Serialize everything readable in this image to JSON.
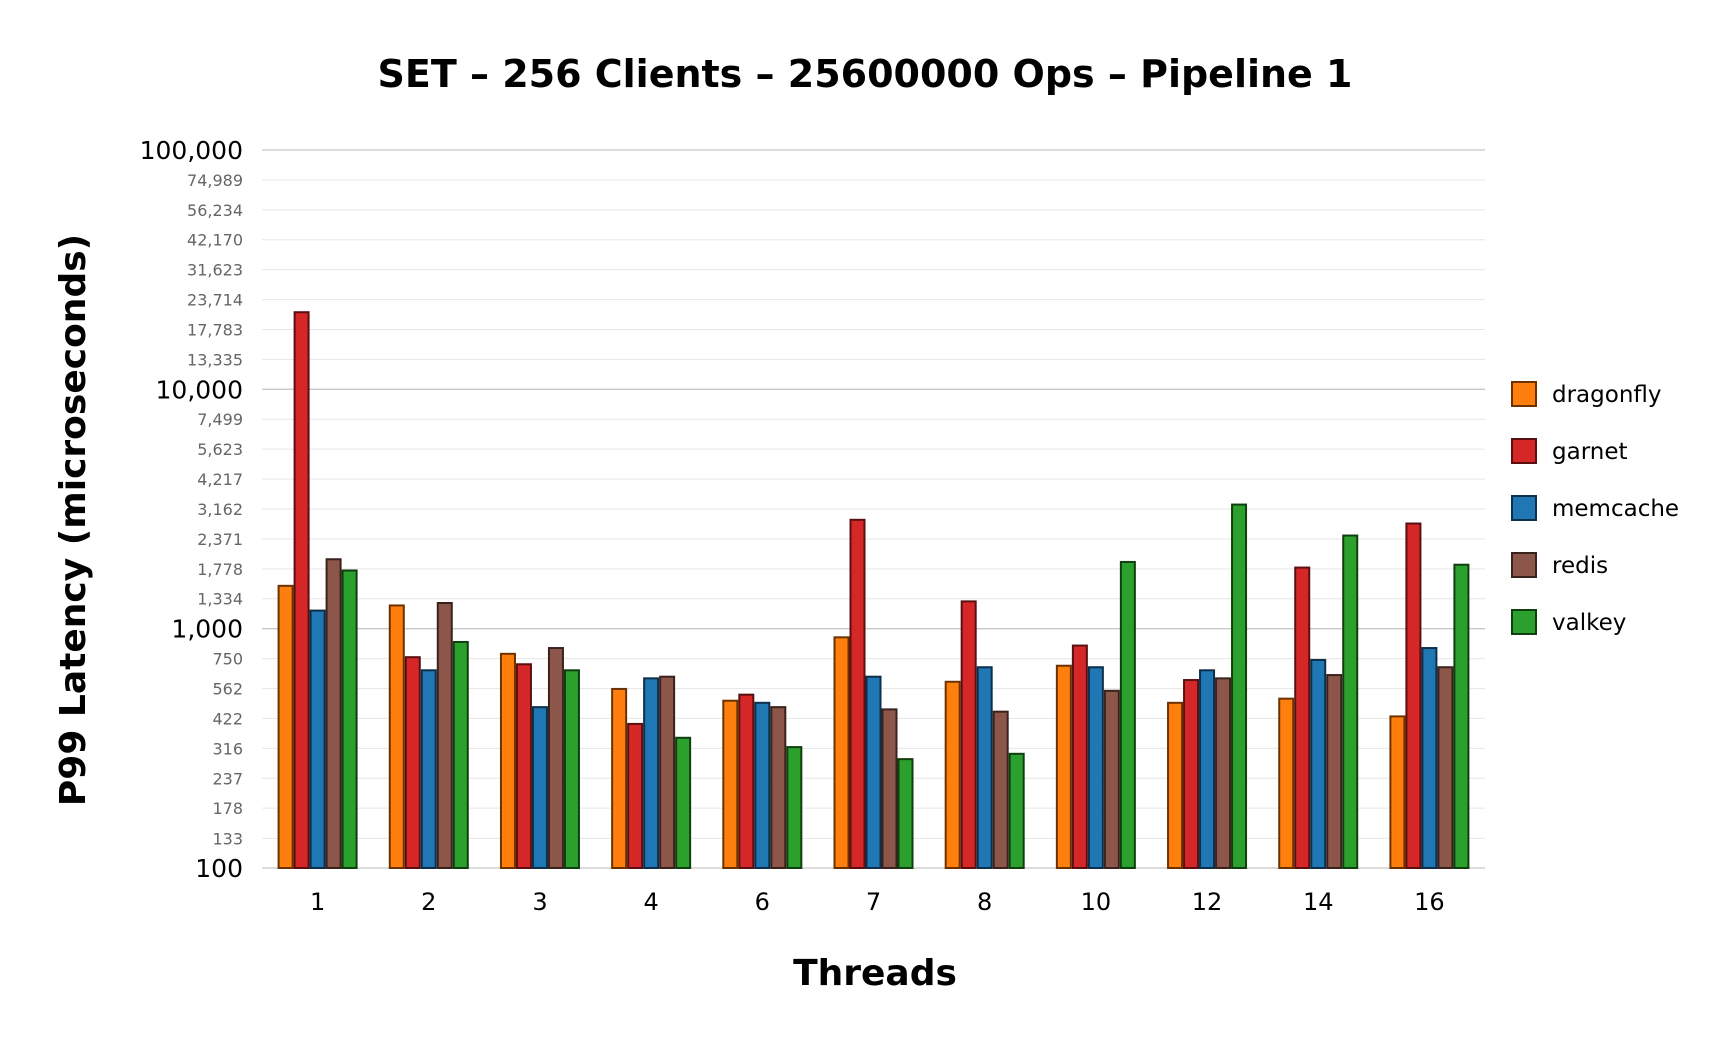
{
  "chart_data": {
    "type": "bar",
    "title": "SET – 256 Clients – 25600000 Ops – Pipeline 1",
    "xlabel": "Threads",
    "ylabel": "P99 Latency (microseconds)",
    "y_scale": "log",
    "ylim": [
      100,
      100000
    ],
    "grid": true,
    "legend_position": "right",
    "y_ticks_major": [
      "100",
      "1,000",
      "10,000",
      "100,000"
    ],
    "y_ticks_minor": [
      {
        "value": 133,
        "label": "133"
      },
      {
        "value": 178,
        "label": "178"
      },
      {
        "value": 237,
        "label": "237"
      },
      {
        "value": 316,
        "label": "316"
      },
      {
        "value": 422,
        "label": "422"
      },
      {
        "value": 562,
        "label": "562"
      },
      {
        "value": 750,
        "label": "750"
      },
      {
        "value": 1334,
        "label": "1,334"
      },
      {
        "value": 1778,
        "label": "1,778"
      },
      {
        "value": 2371,
        "label": "2,371"
      },
      {
        "value": 3162,
        "label": "3,162"
      },
      {
        "value": 4217,
        "label": "4,217"
      },
      {
        "value": 5623,
        "label": "5,623"
      },
      {
        "value": 7499,
        "label": "7,499"
      },
      {
        "value": 13335,
        "label": "13,335"
      },
      {
        "value": 17783,
        "label": "17,783"
      },
      {
        "value": 23714,
        "label": "23,714"
      },
      {
        "value": 31623,
        "label": "31,623"
      },
      {
        "value": 42170,
        "label": "42,170"
      },
      {
        "value": 56234,
        "label": "56,234"
      },
      {
        "value": 74989,
        "label": "74,989"
      }
    ],
    "categories": [
      "1",
      "2",
      "3",
      "4",
      "6",
      "7",
      "8",
      "10",
      "12",
      "14",
      "16"
    ],
    "series": [
      {
        "name": "dragonfly",
        "color": "#ff7f0e",
        "stroke": "#6b3200",
        "values": [
          1510,
          1250,
          785,
          560,
          500,
          920,
          600,
          700,
          490,
          510,
          430
        ]
      },
      {
        "name": "garnet",
        "color": "#d62728",
        "stroke": "#5a0f10",
        "values": [
          21000,
          760,
          710,
          400,
          530,
          2850,
          1300,
          850,
          610,
          1800,
          2750
        ]
      },
      {
        "name": "memcache",
        "color": "#1f77b4",
        "stroke": "#0d2f4a",
        "values": [
          1190,
          670,
          470,
          620,
          490,
          630,
          690,
          690,
          670,
          740,
          830
        ]
      },
      {
        "name": "redis",
        "color": "#8c564b",
        "stroke": "#3a221d",
        "values": [
          1950,
          1280,
          830,
          630,
          470,
          460,
          450,
          550,
          620,
          640,
          690
        ]
      },
      {
        "name": "valkey",
        "color": "#2ca02c",
        "stroke": "#0f3f0f",
        "values": [
          1750,
          880,
          670,
          350,
          320,
          285,
          300,
          1900,
          3300,
          2450,
          1850
        ]
      }
    ]
  }
}
